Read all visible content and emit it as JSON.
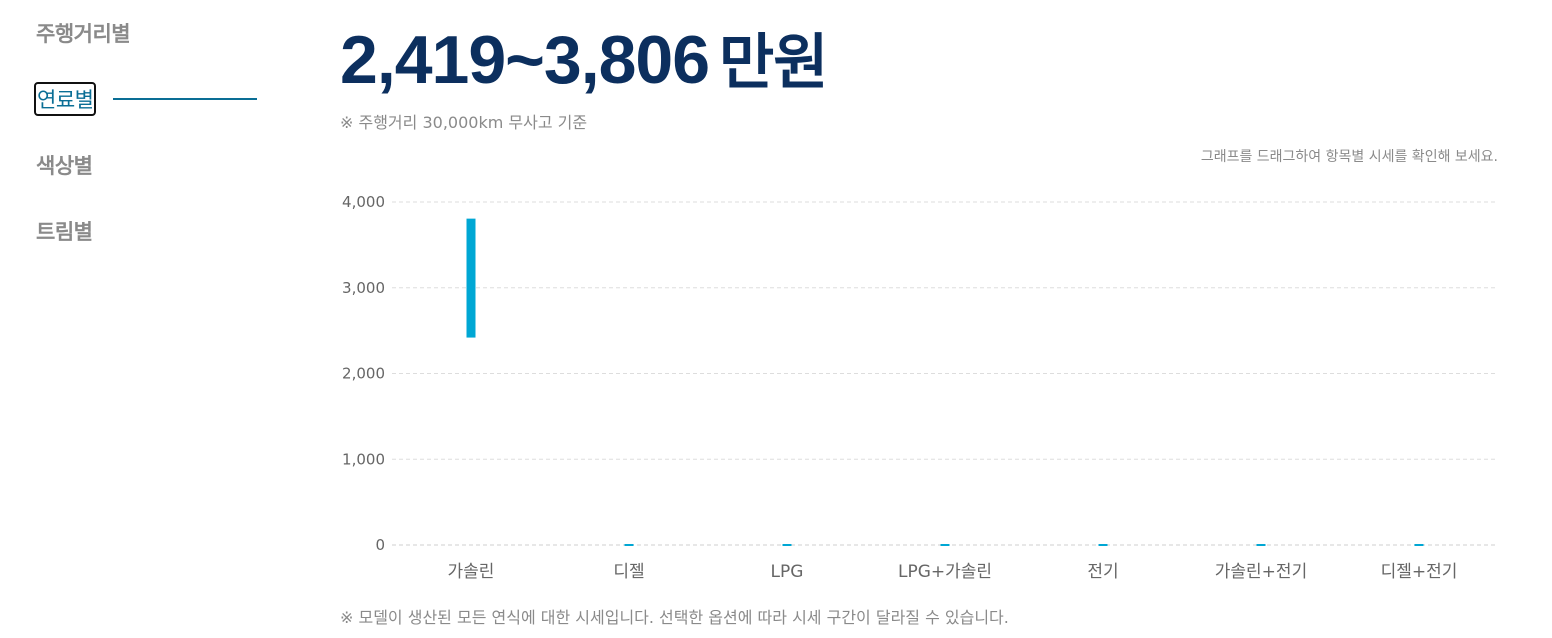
{
  "sidebar": {
    "items": [
      {
        "label": "주행거리별",
        "active": false
      },
      {
        "label": "연료별",
        "active": true
      },
      {
        "label": "색상별",
        "active": false
      },
      {
        "label": "트림별",
        "active": false
      }
    ]
  },
  "header": {
    "price_range": "2,419~3,806",
    "unit": "만원",
    "note": "※ 주행거리 30,000km 무사고 기준"
  },
  "drag_hint": "그래프를 드래그하여 항목별 시세를 확인해 보세요.",
  "footnote": "※ 모델이 생산된 모든 연식에 대한 시세입니다. 선택한 옵션에 따라 시세 구간이 달라질 수 있습니다.",
  "colors": {
    "accent": "#00a7d4",
    "title": "#0c2f5e",
    "active_tab": "#0a6e95",
    "muted": "#8a8a8a",
    "grid": "#dddddd"
  },
  "chart_data": {
    "type": "bar",
    "subtype": "floating-range",
    "categories": [
      "가솔린",
      "디젤",
      "LPG",
      "LPG+가솔린",
      "전기",
      "가솔린+전기",
      "디젤+전기"
    ],
    "ranges": [
      [
        2419,
        3806
      ],
      [
        0,
        0
      ],
      [
        0,
        0
      ],
      [
        0,
        0
      ],
      [
        0,
        0
      ],
      [
        0,
        0
      ],
      [
        0,
        0
      ]
    ],
    "ylim": [
      0,
      4000
    ],
    "yticks": [
      0,
      1000,
      2000,
      3000,
      4000
    ],
    "ytick_labels": [
      "0",
      "1,000",
      "2,000",
      "3,000",
      "4,000"
    ],
    "grid": true,
    "legend": "none",
    "xlabel": "",
    "ylabel": ""
  }
}
